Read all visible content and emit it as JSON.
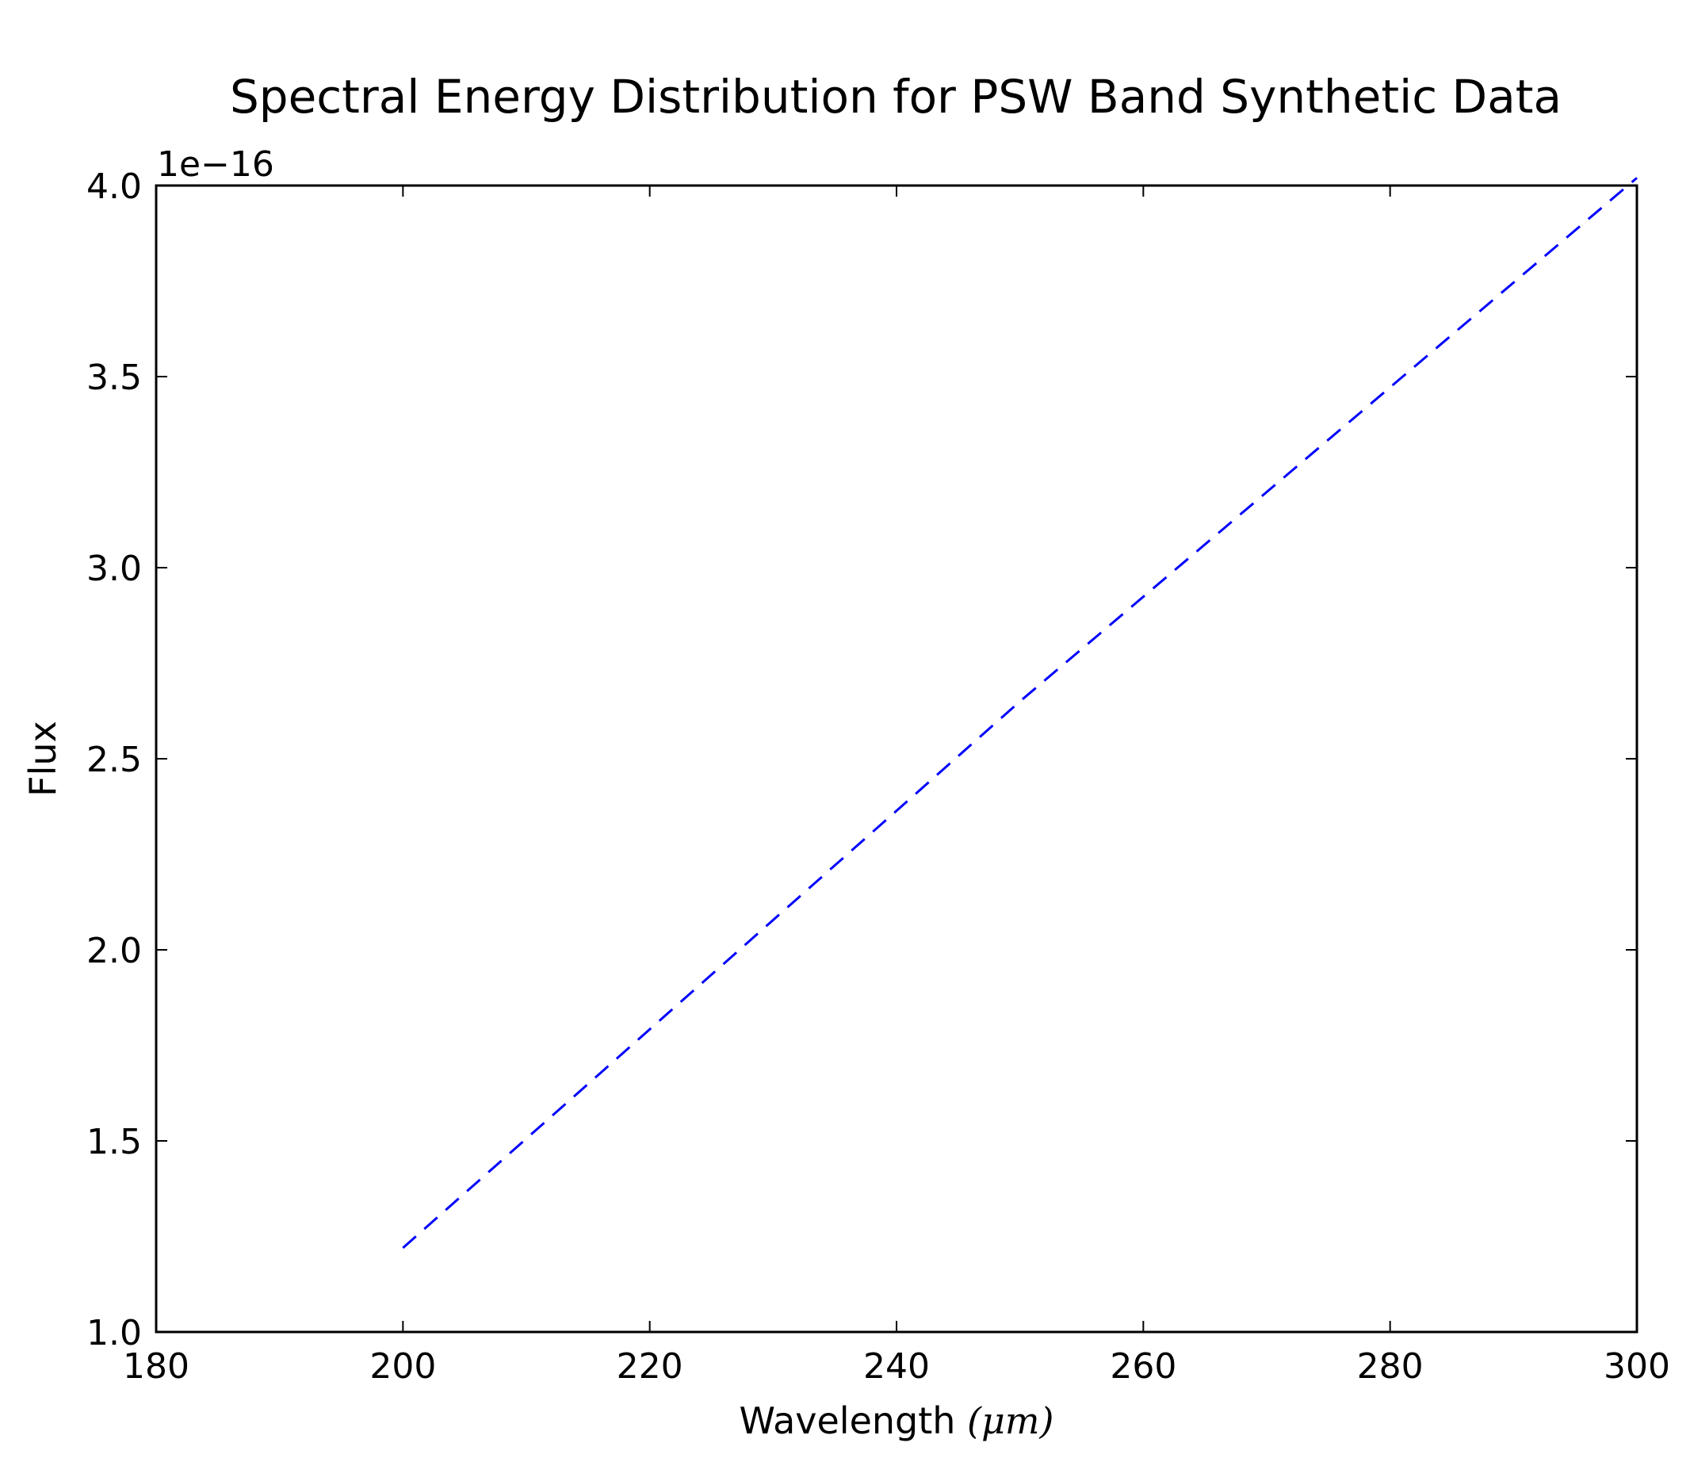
{
  "chart_data": {
    "type": "line",
    "title": "Spectral Energy Distribution for PSW Band Synthetic Data",
    "xlabel": "Wavelength ",
    "xlabel_unit": "(μm)",
    "ylabel": "Flux",
    "offset_label": "1e−16",
    "xlim": [
      180,
      300
    ],
    "ylim": [
      1.0,
      4.0
    ],
    "xticks": [
      180,
      200,
      220,
      240,
      260,
      280,
      300
    ],
    "xtick_labels": [
      "180",
      "200",
      "220",
      "240",
      "260",
      "280",
      "300"
    ],
    "yticks": [
      1.0,
      1.5,
      2.0,
      2.5,
      3.0,
      3.5,
      4.0
    ],
    "ytick_labels": [
      "1.0",
      "1.5",
      "2.0",
      "2.5",
      "3.0",
      "3.5",
      "4.0"
    ],
    "grid": false,
    "series": [
      {
        "style": "dashed",
        "color": "#0000ff",
        "x": [
          200,
          250,
          300
        ],
        "y": [
          1.22,
          2.65,
          4.02
        ]
      }
    ]
  }
}
